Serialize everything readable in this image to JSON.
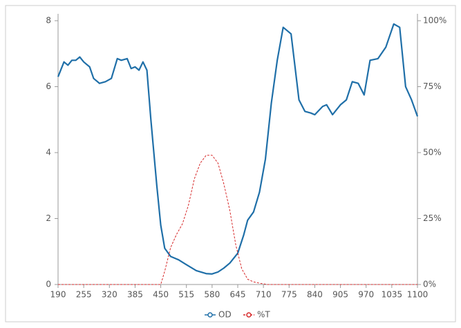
{
  "chart_data": {
    "type": "line",
    "xlim": [
      190,
      1100
    ],
    "xticks": [
      190,
      255,
      320,
      385,
      450,
      515,
      580,
      645,
      710,
      775,
      840,
      905,
      970,
      1035,
      1100
    ],
    "ylim": [
      0,
      8
    ],
    "yticks": [
      0,
      2,
      4,
      6,
      8
    ],
    "y2lim": [
      0,
      100
    ],
    "y2ticks": [
      {
        "value": 0,
        "label": "0%"
      },
      {
        "value": 25,
        "label": "25%"
      },
      {
        "value": 50,
        "label": "50%"
      },
      {
        "value": 75,
        "label": "75%"
      },
      {
        "value": 100,
        "label": "100%"
      }
    ],
    "legend": "bottom",
    "series": [
      {
        "name": "OD",
        "color": "#1f6fa8",
        "dashed": false,
        "x": [
          190,
          205,
          215,
          225,
          235,
          245,
          255,
          270,
          280,
          295,
          310,
          325,
          340,
          350,
          365,
          375,
          385,
          395,
          405,
          415,
          425,
          440,
          450,
          460,
          475,
          495,
          515,
          540,
          565,
          580,
          595,
          610,
          625,
          645,
          660,
          670,
          685,
          700,
          715,
          730,
          745,
          760,
          770,
          780,
          790,
          800,
          815,
          830,
          840,
          860,
          870,
          885,
          905,
          920,
          935,
          950,
          965,
          980,
          1000,
          1020,
          1040,
          1055,
          1070,
          1085,
          1100
        ],
        "values": [
          6.3,
          6.75,
          6.65,
          6.8,
          6.8,
          6.9,
          6.75,
          6.6,
          6.25,
          6.1,
          6.15,
          6.25,
          6.85,
          6.8,
          6.85,
          6.55,
          6.6,
          6.5,
          6.75,
          6.5,
          5.0,
          3.0,
          1.8,
          1.1,
          0.85,
          0.75,
          0.6,
          0.42,
          0.33,
          0.32,
          0.38,
          0.5,
          0.65,
          0.95,
          1.5,
          1.95,
          2.2,
          2.8,
          3.8,
          5.5,
          6.8,
          7.8,
          7.7,
          7.6,
          6.6,
          5.6,
          5.25,
          5.2,
          5.15,
          5.4,
          5.45,
          5.15,
          5.45,
          5.6,
          6.15,
          6.1,
          5.75,
          6.8,
          6.85,
          7.2,
          7.9,
          7.8,
          6.0,
          5.6,
          5.1
        ]
      },
      {
        "name": "%T",
        "color": "#d62728",
        "dashed": true,
        "axis": "y2",
        "x": [
          190,
          450,
          460,
          475,
          490,
          505,
          520,
          535,
          550,
          565,
          580,
          595,
          610,
          625,
          640,
          655,
          670,
          685,
          700,
          720,
          1100
        ],
        "values": [
          0,
          0,
          5,
          14,
          19,
          23,
          30,
          40,
          46,
          49,
          49,
          46,
          38,
          28,
          15,
          6,
          2,
          1,
          0.5,
          0,
          0
        ]
      }
    ]
  }
}
